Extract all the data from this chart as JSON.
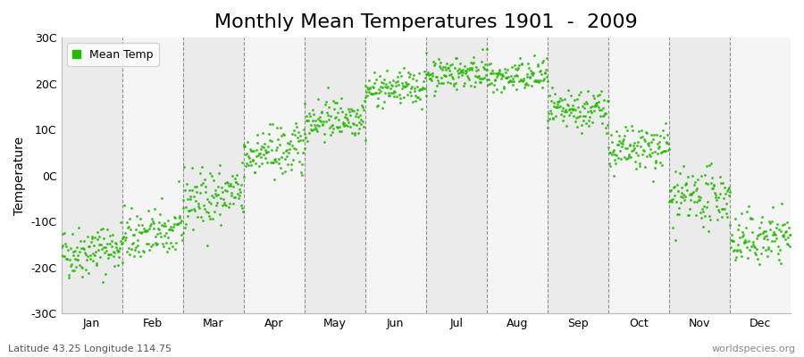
{
  "title": "Monthly Mean Temperatures 1901  -  2009",
  "ylabel": "Temperature",
  "xlabel_bottom_left": "Latitude 43.25 Longitude 114.75",
  "xlabel_bottom_right": "worldspecies.org",
  "legend_label": "Mean Temp",
  "dot_color": "#22BB00",
  "band_colors": [
    "#ebebeb",
    "#f5f5f5"
  ],
  "ylim": [
    -30,
    30
  ],
  "yticks": [
    -30,
    -20,
    -10,
    0,
    10,
    20,
    30
  ],
  "ytick_labels": [
    "-30C",
    "-20C",
    "-10C",
    "0C",
    "10C",
    "20C",
    "30C"
  ],
  "months": [
    "Jan",
    "Feb",
    "Mar",
    "Apr",
    "May",
    "Jun",
    "Jul",
    "Aug",
    "Sep",
    "Oct",
    "Nov",
    "Dec"
  ],
  "monthly_means": [
    -17.0,
    -13.5,
    -5.5,
    4.5,
    12.0,
    18.5,
    22.0,
    21.0,
    13.5,
    5.0,
    -5.5,
    -14.5
  ],
  "monthly_stds": [
    2.8,
    2.8,
    3.2,
    2.8,
    2.2,
    1.8,
    1.8,
    1.8,
    2.2,
    2.5,
    3.0,
    2.8
  ],
  "monthly_trend": [
    0.015,
    0.015,
    0.015,
    0.012,
    0.01,
    0.008,
    0.008,
    0.008,
    0.01,
    0.012,
    0.012,
    0.015
  ],
  "year_start": 1901,
  "year_end": 2009,
  "seed": 42,
  "title_fontsize": 16,
  "axis_label_fontsize": 10,
  "tick_fontsize": 9,
  "legend_fontsize": 9,
  "dot_size": 4
}
